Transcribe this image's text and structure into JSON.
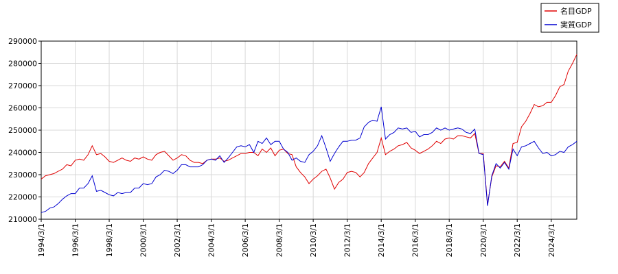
{
  "chart_data": {
    "type": "line",
    "x": [
      "1994/3/1",
      "1994/6/1",
      "1994/9/1",
      "1994/12/1",
      "1995/3/1",
      "1995/6/1",
      "1995/9/1",
      "1995/12/1",
      "1996/3/1",
      "1996/6/1",
      "1996/9/1",
      "1996/12/1",
      "1997/3/1",
      "1997/6/1",
      "1997/9/1",
      "1997/12/1",
      "1998/3/1",
      "1998/6/1",
      "1998/9/1",
      "1998/12/1",
      "1999/3/1",
      "1999/6/1",
      "1999/9/1",
      "1999/12/1",
      "2000/3/1",
      "2000/6/1",
      "2000/9/1",
      "2000/12/1",
      "2001/3/1",
      "2001/6/1",
      "2001/9/1",
      "2001/12/1",
      "2002/3/1",
      "2002/6/1",
      "2002/9/1",
      "2002/12/1",
      "2003/3/1",
      "2003/6/1",
      "2003/9/1",
      "2003/12/1",
      "2004/3/1",
      "2004/6/1",
      "2004/9/1",
      "2004/12/1",
      "2005/3/1",
      "2005/6/1",
      "2005/9/1",
      "2005/12/1",
      "2006/3/1",
      "2006/6/1",
      "2006/9/1",
      "2006/12/1",
      "2007/3/1",
      "2007/6/1",
      "2007/9/1",
      "2007/12/1",
      "2008/3/1",
      "2008/6/1",
      "2008/9/1",
      "2008/12/1",
      "2009/3/1",
      "2009/6/1",
      "2009/9/1",
      "2009/12/1",
      "2010/3/1",
      "2010/6/1",
      "2010/9/1",
      "2010/12/1",
      "2011/3/1",
      "2011/6/1",
      "2011/9/1",
      "2011/12/1",
      "2012/3/1",
      "2012/6/1",
      "2012/9/1",
      "2012/12/1",
      "2013/3/1",
      "2013/6/1",
      "2013/9/1",
      "2013/12/1",
      "2014/3/1",
      "2014/6/1",
      "2014/9/1",
      "2014/12/1",
      "2015/3/1",
      "2015/6/1",
      "2015/9/1",
      "2015/12/1",
      "2016/3/1",
      "2016/6/1",
      "2016/9/1",
      "2016/12/1",
      "2017/3/1",
      "2017/6/1",
      "2017/9/1",
      "2017/12/1",
      "2018/3/1",
      "2018/6/1",
      "2018/9/1",
      "2018/12/1",
      "2019/3/1",
      "2019/6/1",
      "2019/9/1",
      "2019/12/1",
      "2020/3/1",
      "2020/6/1",
      "2020/9/1",
      "2020/12/1",
      "2021/3/1",
      "2021/6/1",
      "2021/9/1",
      "2021/12/1",
      "2022/3/1",
      "2022/6/1",
      "2022/9/1",
      "2022/12/1",
      "2023/3/1",
      "2023/6/1",
      "2023/9/1",
      "2023/12/1",
      "2024/3/1",
      "2024/6/1",
      "2024/9/1",
      "2024/12/1",
      "2025/3/1",
      "2025/6/1",
      "2025/9/1"
    ],
    "series": [
      {
        "name": "名目GDP",
        "color": "#e00000",
        "values": [
          228000,
          229500,
          230000,
          230500,
          231500,
          232500,
          234500,
          234000,
          236500,
          237000,
          236500,
          239000,
          243000,
          239000,
          239500,
          238000,
          236000,
          235500,
          236500,
          237500,
          236500,
          236000,
          237500,
          237000,
          238000,
          237000,
          236500,
          239000,
          240000,
          240500,
          238500,
          236500,
          237500,
          239000,
          238500,
          236500,
          235500,
          235500,
          235000,
          236500,
          237000,
          237000,
          237500,
          236000,
          236500,
          237500,
          238500,
          239500,
          239500,
          240000,
          240000,
          238500,
          241500,
          240000,
          242000,
          238500,
          241000,
          241500,
          239500,
          239000,
          233500,
          231000,
          229000,
          226000,
          228000,
          229500,
          231500,
          232500,
          228500,
          223500,
          226500,
          228000,
          231000,
          231500,
          231000,
          229000,
          231000,
          235000,
          237500,
          240000,
          246500,
          239000,
          240500,
          241500,
          243000,
          243500,
          244500,
          242000,
          241000,
          239500,
          240500,
          241500,
          243000,
          245000,
          244000,
          246000,
          246500,
          246000,
          247500,
          247500,
          247000,
          246500,
          248500,
          239500,
          239500,
          216500,
          229000,
          234000,
          233500,
          236000,
          233000,
          244000,
          244500,
          251500,
          254000,
          257500,
          261500,
          260500,
          261000,
          262500,
          262500,
          265500,
          269500,
          270500,
          276500,
          280000,
          284000
        ]
      },
      {
        "name": "実質GDP",
        "color": "#0000d0",
        "values": [
          213000,
          213500,
          215000,
          215500,
          217000,
          219000,
          220500,
          221500,
          221500,
          224000,
          224000,
          226000,
          229500,
          222500,
          223000,
          222000,
          221000,
          220500,
          222000,
          221500,
          222000,
          222000,
          224000,
          224000,
          226000,
          225500,
          226000,
          229000,
          230000,
          232000,
          231500,
          230500,
          232000,
          234500,
          234500,
          233500,
          233500,
          233500,
          234500,
          236500,
          237000,
          236500,
          238500,
          235500,
          237500,
          240000,
          242500,
          243000,
          242500,
          243500,
          240000,
          245000,
          244000,
          246500,
          243500,
          245000,
          245000,
          241500,
          240000,
          236500,
          237500,
          236000,
          235500,
          239000,
          240500,
          243000,
          247500,
          242000,
          236000,
          239500,
          242500,
          245000,
          245000,
          245500,
          245500,
          246500,
          251500,
          253500,
          254500,
          254000,
          260500,
          246000,
          248000,
          249000,
          251000,
          250500,
          251000,
          249000,
          249500,
          247000,
          248000,
          248000,
          249000,
          251000,
          250000,
          251000,
          250000,
          250500,
          251000,
          250500,
          249000,
          248500,
          250500,
          239500,
          239000,
          216000,
          229500,
          235000,
          233000,
          235500,
          232500,
          241500,
          238500,
          242500,
          243000,
          244000,
          245000,
          242000,
          239500,
          240000,
          238500,
          239000,
          240500,
          240000,
          242500,
          243500,
          245000
        ]
      }
    ],
    "xlim": [
      "1994/3/1",
      "2025/9/1"
    ],
    "xticks": [
      "1994/3/1",
      "1996/3/1",
      "1998/3/1",
      "2000/3/1",
      "2002/3/1",
      "2004/3/1",
      "2006/3/1",
      "2008/3/1",
      "2010/3/1",
      "2012/3/1",
      "2014/3/1",
      "2016/3/1",
      "2018/3/1",
      "2020/3/1",
      "2022/3/1",
      "2024/3/1"
    ],
    "ylim": [
      210000,
      290000
    ],
    "yticks": [
      210000,
      220000,
      230000,
      240000,
      250000,
      260000,
      270000,
      280000,
      290000
    ],
    "grid": true,
    "legend": "top-right"
  }
}
